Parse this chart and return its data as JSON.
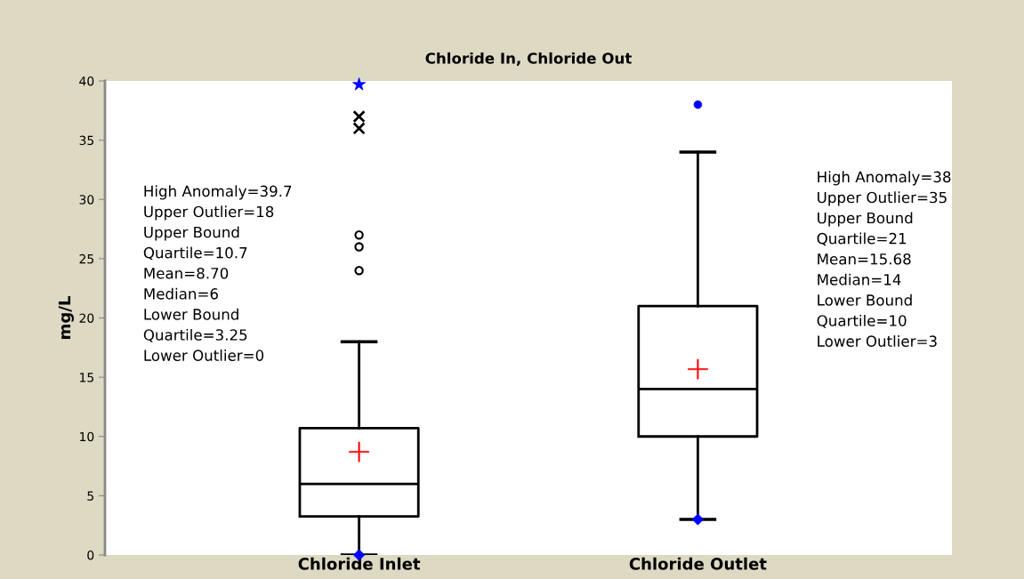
{
  "chart_data": {
    "type": "box",
    "title": "Chloride In, Chloride Out",
    "ylabel": "mg/L",
    "categories": [
      "Chloride Inlet",
      "Chloride Outlet"
    ],
    "boxes": [
      {
        "low": 0,
        "q1": 3.25,
        "median": 6,
        "q3": 10.7,
        "high": 18,
        "mean": 8.7,
        "outliers": [
          24,
          26,
          27
        ]
      },
      {
        "low": 3,
        "q1": 10,
        "median": 14,
        "q3": 21,
        "high": 34,
        "mean": 15.68
      }
    ],
    "series": [
      {
        "type": "scatter",
        "marker": "cross",
        "color": "#000000",
        "x": [
          "Chloride Inlet",
          "Chloride Inlet"
        ],
        "values": [
          36,
          37
        ]
      },
      {
        "type": "scatter",
        "marker": "star",
        "color": "#0000ff",
        "x": [
          "Chloride Inlet"
        ],
        "values": [
          39.7
        ]
      },
      {
        "type": "scatter",
        "marker": "circle",
        "color": "#0000ff",
        "x": [
          "Chloride Outlet"
        ],
        "values": [
          38
        ]
      },
      {
        "type": "scatter",
        "marker": "diamond",
        "color": "#0000ff",
        "x": [
          "Chloride Inlet",
          "Chloride Outlet"
        ],
        "values": [
          0,
          3
        ]
      }
    ],
    "ylim": [
      0,
      40
    ],
    "yticks": [
      0,
      5,
      10,
      15,
      20,
      25,
      30,
      35,
      40
    ],
    "grid": false,
    "legend": false,
    "annotations": [
      "High Anomaly=39.7\nUpper Outlier=18\nUpper Bound\nQuartile=10.7\nMean=8.70\nMedian=6\nLower Bound\nQuartile=3.25\nLower Outlier=0",
      "High Anomaly=38\nUpper Outlier=35\nUpper Bound\nQuartile=21\nMean=15.68\nMedian=14\nLower Bound\nQuartile=10\nLower Outlier=3"
    ]
  }
}
